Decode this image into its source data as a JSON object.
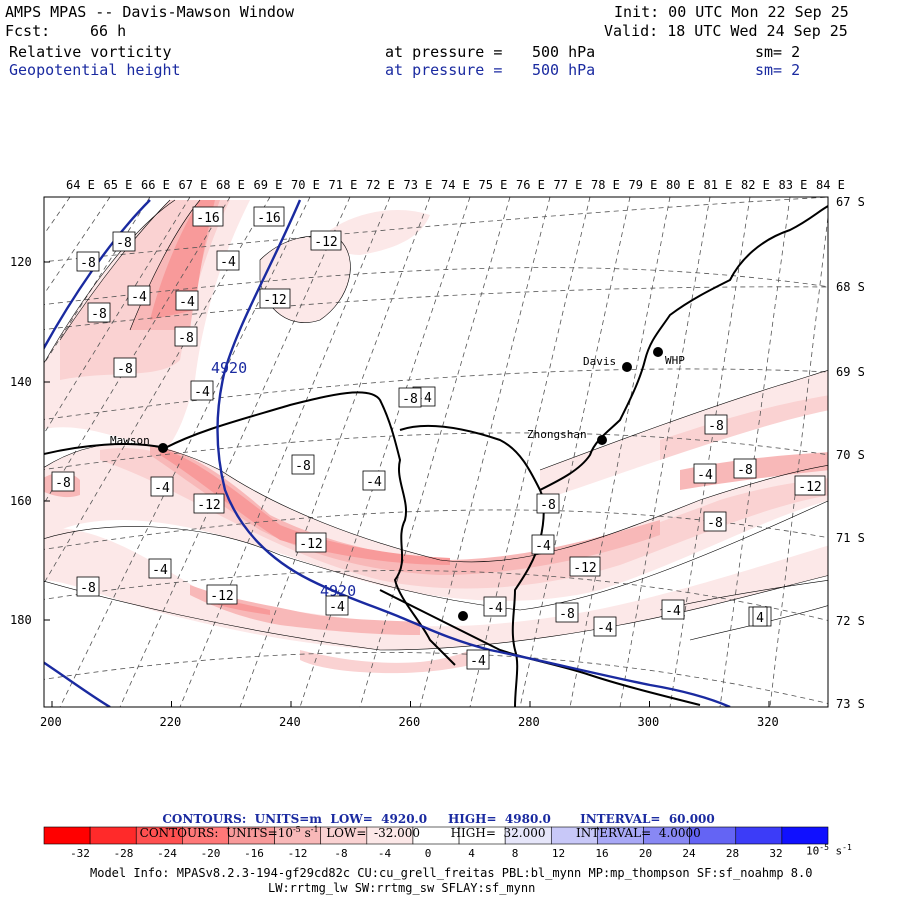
{
  "header": {
    "title": "AMPS MPAS -- Davis-Mawson Window",
    "init": "Init: 00 UTC Mon 22 Sep 25",
    "fcst_label": "Fcst:",
    "fcst_value": "66 h",
    "valid": "Valid: 18 UTC Wed 24 Sep 25",
    "field1": {
      "name": "Relative vorticity",
      "level_text": "at pressure =",
      "level": "500 hPa",
      "sm": "sm= 2"
    },
    "field2": {
      "name": "Geopotential height",
      "level_text": "at pressure =",
      "level": "500 hPa",
      "sm": "sm= 2"
    }
  },
  "map": {
    "top_lon_labels": [
      "64 E",
      "65 E",
      "66 E",
      "67 E",
      "68 E",
      "69 E",
      "70 E",
      "71 E",
      "72 E",
      "73 E",
      "74 E",
      "75 E",
      "76 E",
      "77 E",
      "78 E",
      "79 E",
      "80 E",
      "81 E",
      "82 E",
      "83 E",
      "84 E"
    ],
    "right_lat_labels": [
      "67 S",
      "68 S",
      "69 S",
      "70 S",
      "71 S",
      "72 S",
      "73 S"
    ],
    "left_y_ticks": [
      "120",
      "140",
      "160",
      "180"
    ],
    "bottom_x_ticks": [
      "200",
      "220",
      "240",
      "260",
      "280",
      "300",
      "320"
    ],
    "stations": [
      {
        "name": "Davis"
      },
      {
        "name": "WHP"
      },
      {
        "name": "Zhongshan"
      },
      {
        "name": "Mawson"
      }
    ],
    "height_contour_labels": [
      "4920",
      "4920"
    ],
    "vorticity_labels": [
      "-16",
      "-16",
      "-8",
      "-8",
      "-12",
      "-4",
      "-4",
      "-12",
      "-4",
      "-8",
      "-8",
      "-8",
      "-4",
      "-4",
      "-8",
      "-4",
      "-12",
      "-4",
      "-8",
      "-12",
      "-8",
      "-12",
      "-8",
      "-8",
      "-4",
      "-12",
      "-8",
      "-4",
      "-8",
      "-12",
      "-4",
      "-4",
      "-8",
      "-4",
      "-4",
      "-4",
      "-4",
      "-8",
      "-8",
      "4"
    ],
    "colors": {
      "height_contour": "#1a2aa0",
      "coast": "#000000",
      "grid": "#666666"
    }
  },
  "colorbar": {
    "contours1": {
      "label": "CONTOURS:",
      "units": "UNITS=m",
      "low": "LOW=  4920.0",
      "high": "HIGH=  4980.0",
      "interval": "INTERVAL=  60.000"
    },
    "contours2": {
      "label": "CONTOURS:",
      "units": "UNITS=10",
      "units_exp": "-5",
      "units_tail": "s",
      "units_tail_exp": "-1",
      "low": "LOW=  -32.000",
      "high": "HIGH=  32.000",
      "interval": "INTERVAL=  4.0000"
    },
    "tick_labels": [
      "-32",
      "-28",
      "-24",
      "-20",
      "-16",
      "-12",
      "-8",
      "-4",
      "0",
      "4",
      "8",
      "12",
      "16",
      "20",
      "24",
      "28",
      "32"
    ],
    "unit_label": "10",
    "unit_label_exp": "-5",
    "unit_label_tail": "s",
    "unit_label_tail_exp": "-1",
    "swatches": [
      "#ff0000",
      "#ff2a2a",
      "#ff5050",
      "#ff7878",
      "#f89a9a",
      "#f8b8b8",
      "#fad2d2",
      "#fce8e8",
      "#ffffff",
      "#ffffff",
      "#e6e6fa",
      "#c8c8f8",
      "#a8a8f6",
      "#8888f4",
      "#6464f4",
      "#3c3cf8",
      "#1010ff"
    ]
  },
  "model_info": {
    "line1": "Model Info: MPASv8.2.3-194-gf29cd82c CU:cu_grell_freitas PBL:bl_mynn MP:mp_thompson SF:sf_noahmp 8.0",
    "line2": "LW:rrtmg_lw SW:rrtmg_sw SFLAY:sf_mynn"
  }
}
